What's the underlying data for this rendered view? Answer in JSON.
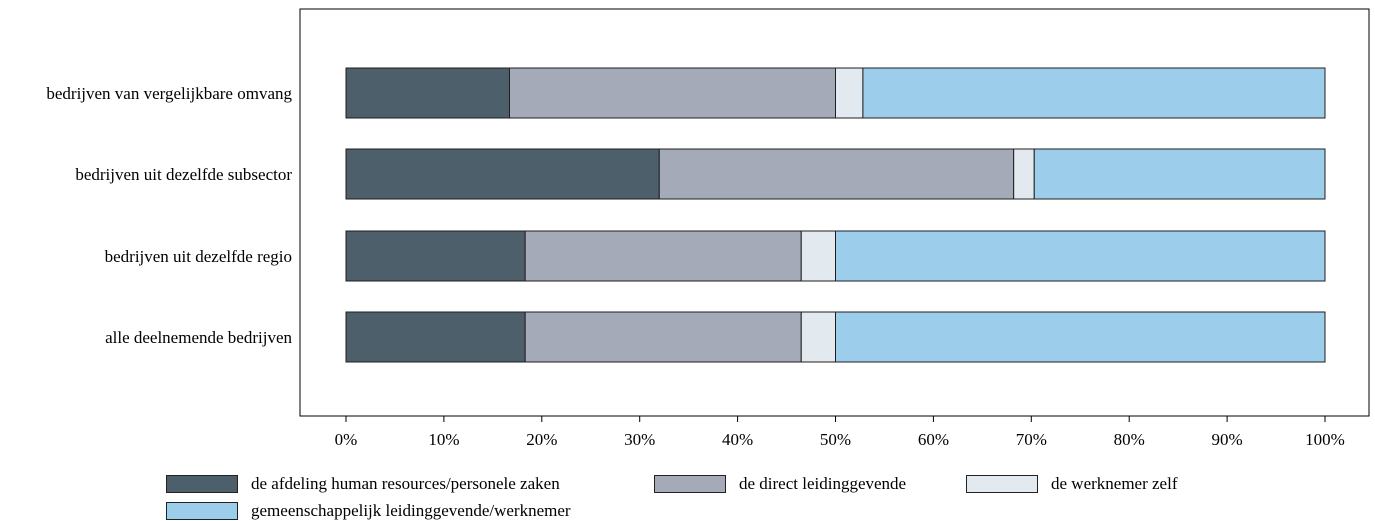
{
  "chart_data": {
    "type": "bar",
    "orientation": "horizontal",
    "stacked": true,
    "title": "",
    "xlabel": "",
    "ylabel": "",
    "xlim": [
      0,
      100
    ],
    "x_ticks": [
      "0%",
      "10%",
      "20%",
      "30%",
      "40%",
      "50%",
      "60%",
      "70%",
      "80%",
      "90%",
      "100%"
    ],
    "categories": [
      "bedrijven van vergelijkbare omvang",
      "bedrijven uit dezelfde subsector",
      "bedrijven uit dezelfde regio",
      "alle deelnemende bedrijven"
    ],
    "series": [
      {
        "name": "de afdeling human resources/personele zaken",
        "color": "#4d5f6a",
        "values": [
          16.7,
          32.0,
          18.3,
          18.3
        ]
      },
      {
        "name": "de direct leidinggevende",
        "color": "#a5aab9",
        "values": [
          33.3,
          36.2,
          28.2,
          28.2
        ]
      },
      {
        "name": "de werknemer zelf",
        "color": "#e2e9ef",
        "values": [
          2.8,
          2.1,
          3.5,
          3.5
        ]
      },
      {
        "name": "gemeenschappelijk leidinggevende/werknemer",
        "color": "#9ccdeb",
        "values": [
          47.2,
          29.7,
          50.0,
          50.0
        ]
      }
    ],
    "grid": false,
    "legend_position": "bottom"
  }
}
